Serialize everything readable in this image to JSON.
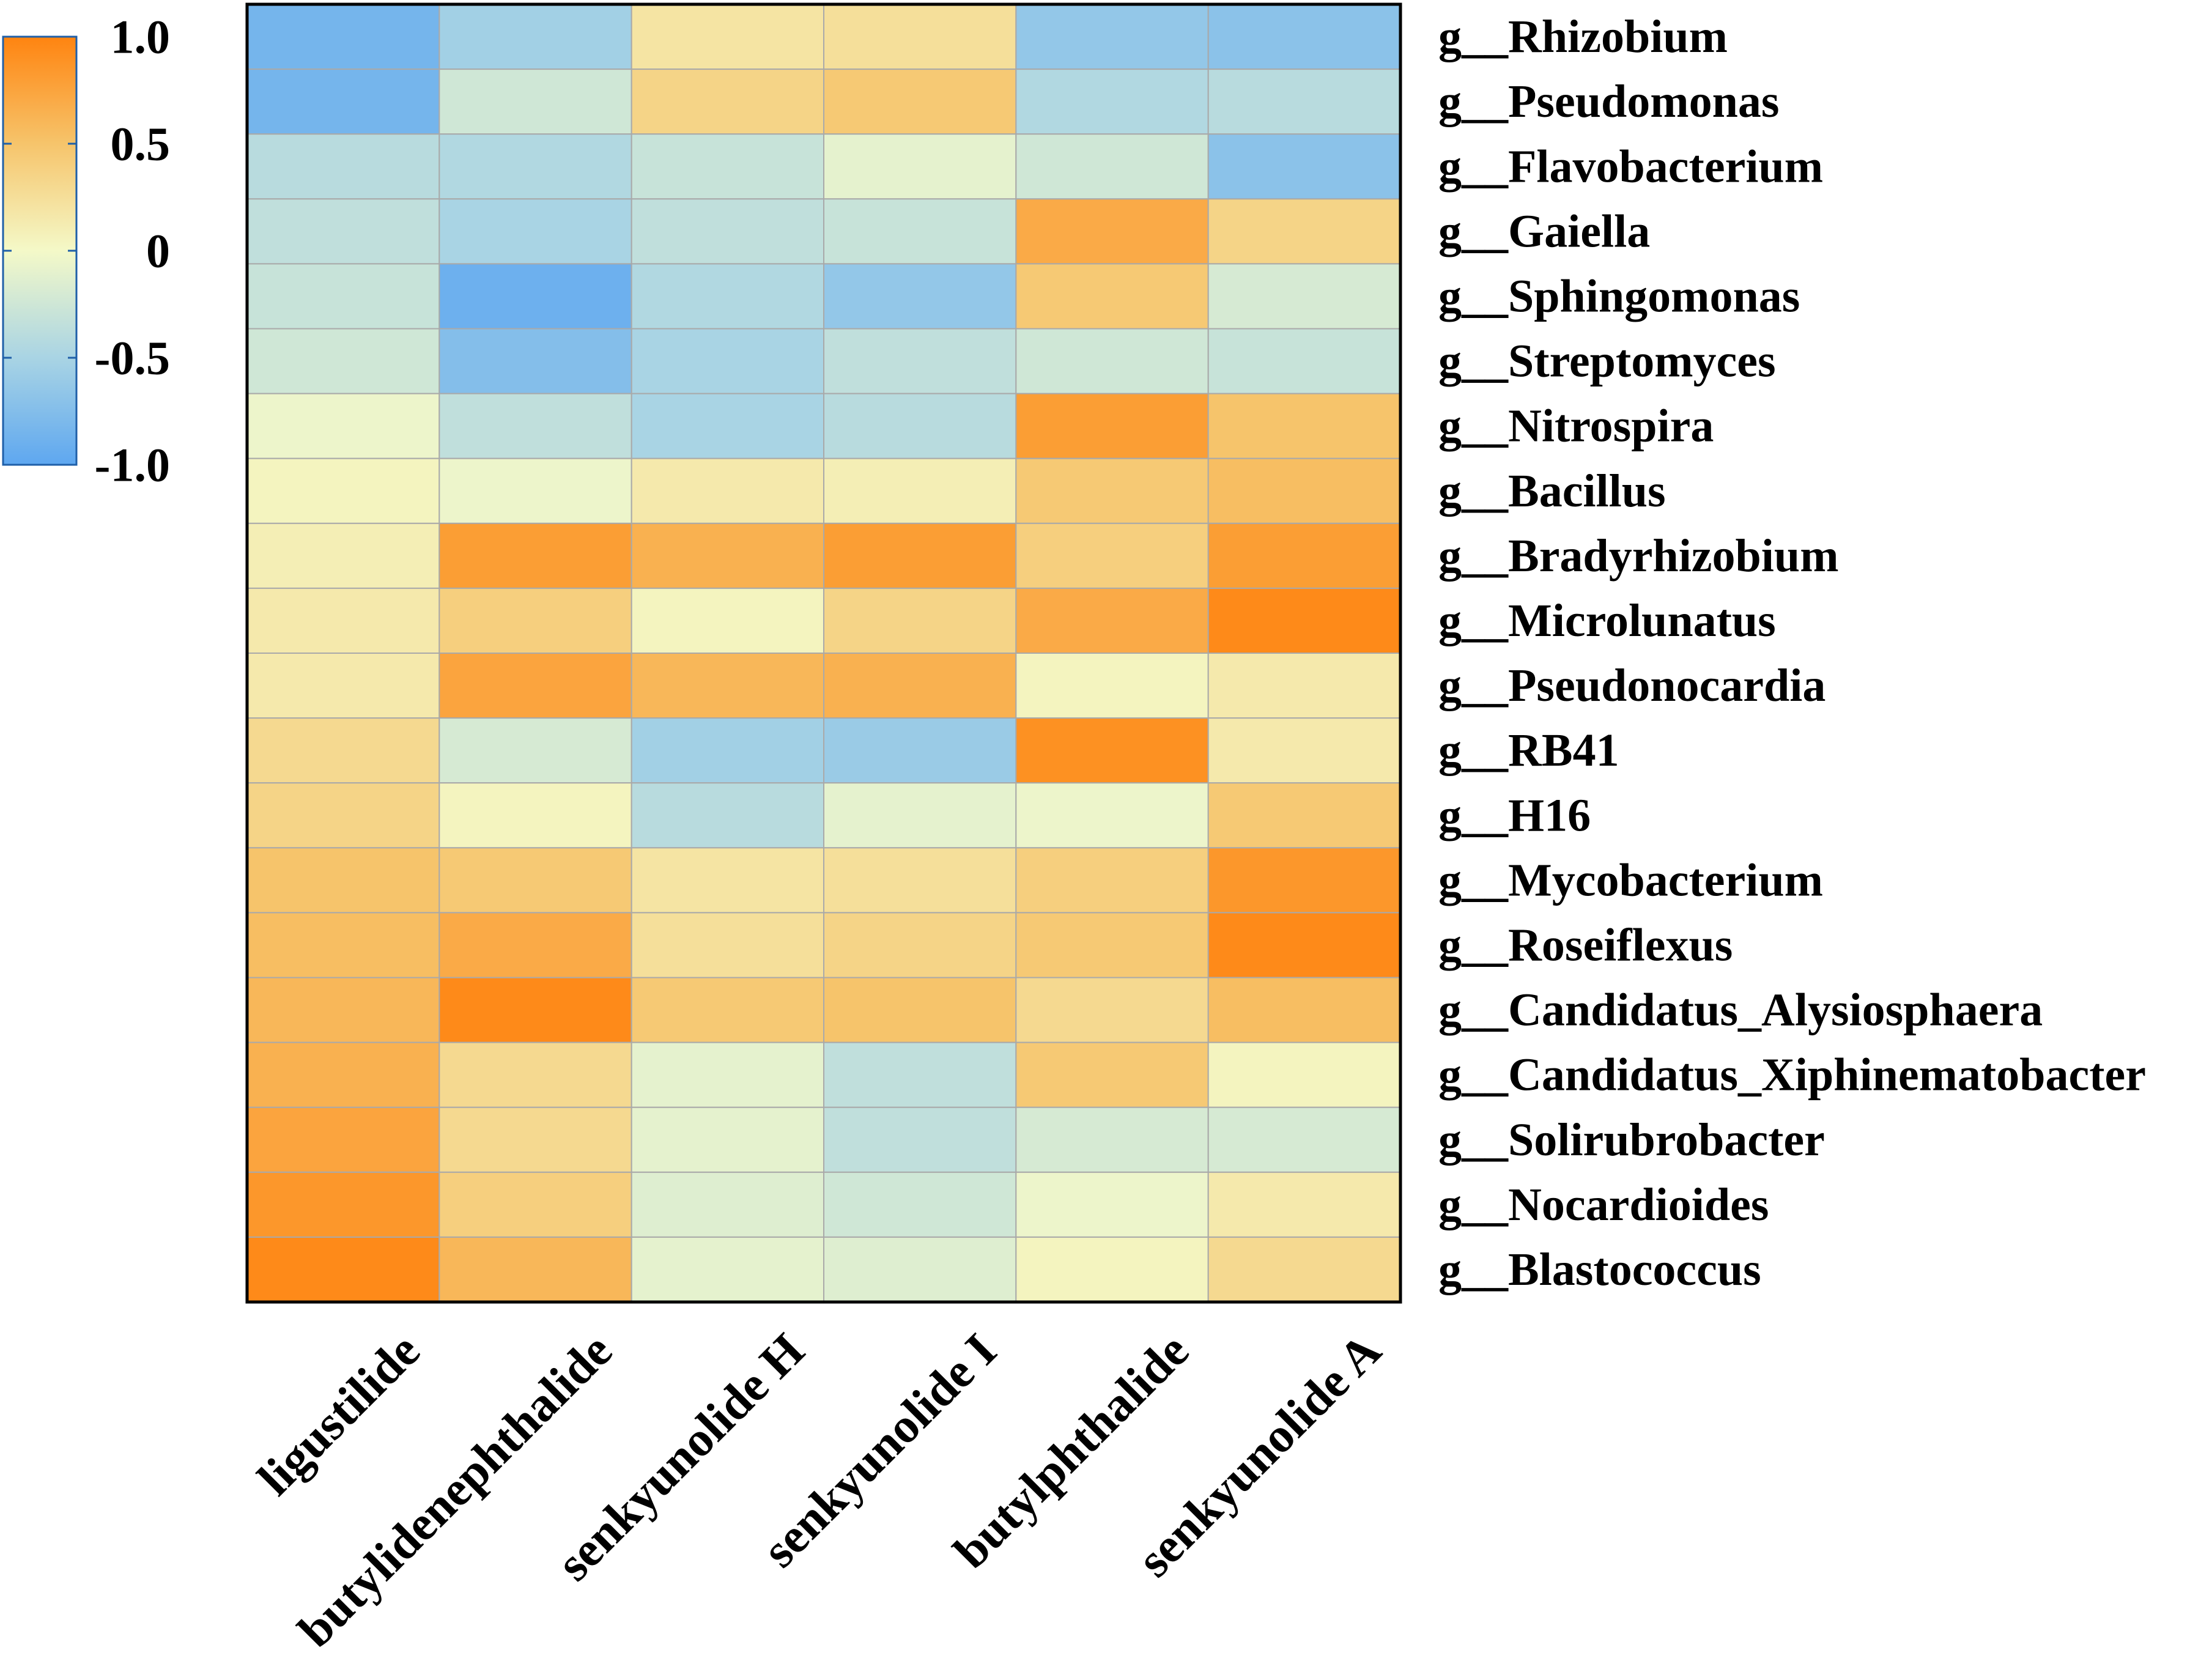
{
  "chart_data": {
    "type": "heatmap",
    "title": "",
    "xlabel": "",
    "ylabel": "",
    "columns": [
      "ligustilide",
      "butylidenephthalide",
      "senkyunolide H",
      "senkyunolide I",
      "butylphthalide",
      "senkyunolide A"
    ],
    "rows": [
      "g__Rhizobium",
      "g__Pseudomonas",
      "g__Flavobacterium",
      "g__Gaiella",
      "g__Sphingomonas",
      "g__Streptomyces",
      "g__Nitrospira",
      "g__Bacillus",
      "g__Bradyrhizobium",
      "g__Microlunatus",
      "g__Pseudonocardia",
      "g__RB41",
      "g__H16",
      "g__Mycobacterium",
      "g__Roseiflexus",
      "g__Candidatus_Alysiosphaera",
      "g__Candidatus_Xiphinematobacter",
      "g__Solirubrobacter",
      "g__Nocardioides",
      "g__Blastococcus"
    ],
    "values": [
      [
        -0.85,
        -0.55,
        0.2,
        0.25,
        -0.65,
        -0.7
      ],
      [
        -0.85,
        -0.25,
        0.35,
        0.45,
        -0.45,
        -0.4
      ],
      [
        -0.4,
        -0.45,
        -0.3,
        -0.1,
        -0.25,
        -0.7
      ],
      [
        -0.35,
        -0.5,
        -0.35,
        -0.3,
        0.7,
        0.35
      ],
      [
        -0.3,
        -0.9,
        -0.45,
        -0.65,
        0.45,
        -0.2
      ],
      [
        -0.25,
        -0.75,
        -0.5,
        -0.35,
        -0.25,
        -0.3
      ],
      [
        -0.05,
        -0.35,
        -0.5,
        -0.4,
        0.8,
        0.5
      ],
      [
        0.05,
        -0.05,
        0.15,
        0.1,
        0.45,
        0.55
      ],
      [
        0.1,
        0.8,
        0.65,
        0.8,
        0.4,
        0.8
      ],
      [
        0.15,
        0.4,
        0.05,
        0.35,
        0.7,
        0.95
      ],
      [
        0.15,
        0.75,
        0.6,
        0.65,
        0.05,
        0.15
      ],
      [
        0.3,
        -0.2,
        -0.55,
        -0.6,
        0.9,
        0.15
      ],
      [
        0.35,
        0.05,
        -0.4,
        -0.1,
        -0.05,
        0.45
      ],
      [
        0.5,
        0.45,
        0.2,
        0.25,
        0.4,
        0.85
      ],
      [
        0.55,
        0.7,
        0.25,
        0.35,
        0.45,
        0.95
      ],
      [
        0.6,
        0.95,
        0.45,
        0.5,
        0.3,
        0.55
      ],
      [
        0.65,
        0.3,
        -0.1,
        -0.35,
        0.45,
        0.05
      ],
      [
        0.75,
        0.3,
        -0.1,
        -0.35,
        -0.2,
        -0.2
      ],
      [
        0.85,
        0.4,
        -0.15,
        -0.25,
        -0.05,
        0.15
      ],
      [
        0.95,
        0.6,
        -0.1,
        -0.15,
        0.05,
        0.3
      ]
    ],
    "colorbar": {
      "min": -1.0,
      "max": 1.0,
      "tick_labels": [
        "1.0",
        "0.5",
        "0",
        "-0.5",
        "-1.0"
      ],
      "tick_values": [
        1.0,
        0.5,
        0.0,
        -0.5,
        -1.0
      ]
    },
    "colors": {
      "low": "#5EA7F0",
      "low_mid": "#A9D4E4",
      "mid": "#F4F9C8",
      "high_mid": "#F6C46B",
      "high": "#FF8410",
      "grid_line": "#A9A9A9",
      "frame": "#000000"
    }
  }
}
